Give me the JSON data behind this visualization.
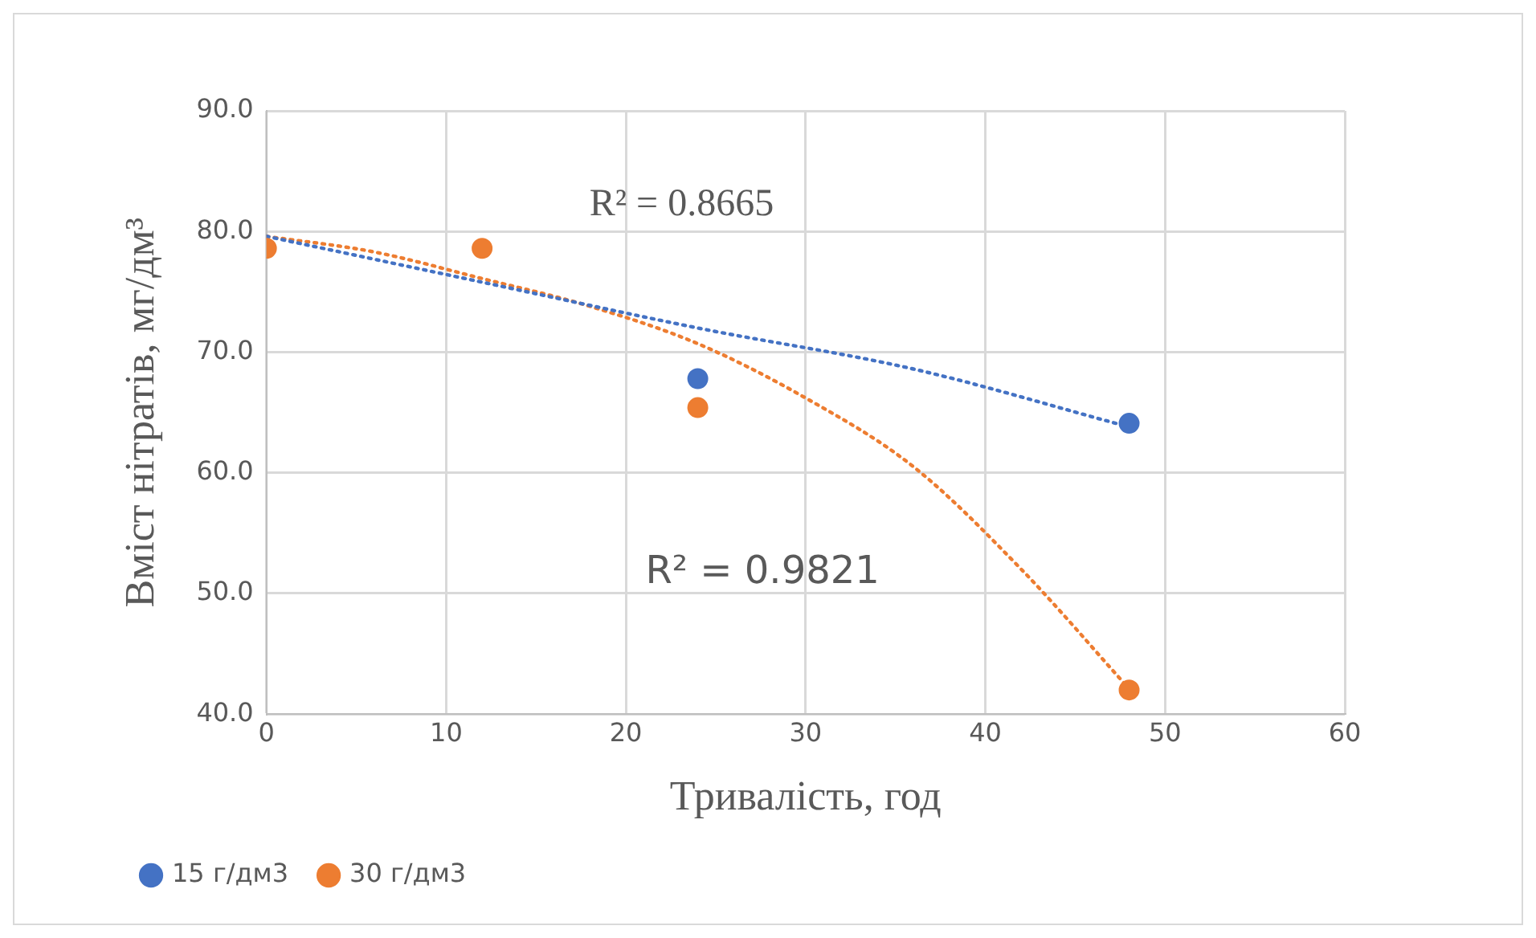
{
  "chart_data": {
    "type": "scatter",
    "xlabel": "Тривалість, год",
    "ylabel": "Вміст нітратів, мг/дм³",
    "xlim": [
      0,
      60
    ],
    "xticks": [
      0,
      10,
      20,
      30,
      40,
      50,
      60
    ],
    "ylim": [
      40,
      90
    ],
    "yticks": [
      {
        "value": 40,
        "label": "40.0"
      },
      {
        "value": 50,
        "label": "50.0"
      },
      {
        "value": 60,
        "label": "60.0"
      },
      {
        "value": 70,
        "label": "70.0"
      },
      {
        "value": 80,
        "label": "80.0"
      },
      {
        "value": 90,
        "label": "90.0"
      }
    ],
    "grid": true,
    "legend": "bottom",
    "marker": "circle",
    "series": [
      {
        "name": "15 г/дм3",
        "color": "#4472c4",
        "x": [
          24,
          48
        ],
        "values": [
          67.8,
          64.1
        ]
      },
      {
        "name": "30 г/дм3",
        "color": "#ed7d31",
        "x": [
          0,
          12,
          24,
          48
        ],
        "values": [
          78.6,
          78.6,
          65.4,
          42.0
        ]
      },
      {
        "type": "line",
        "color": "#4472c4",
        "marker": "none",
        "line_style": "dotted",
        "x": [
          0,
          12,
          24,
          36,
          48
        ],
        "values": [
          79.6,
          75.8,
          72.0,
          68.6,
          63.8
        ]
      },
      {
        "type": "line",
        "color": "#ed7d31",
        "marker": "none",
        "line_style": "dotted",
        "x": [
          0,
          6,
          12,
          18,
          24,
          30,
          36,
          42,
          48
        ],
        "values": [
          79.6,
          78.3,
          76.1,
          73.8,
          70.7,
          66.2,
          60.5,
          52.0,
          42.1
        ]
      }
    ],
    "annotations": [
      "R² = 0.8665",
      "R² = 0.9821"
    ]
  }
}
